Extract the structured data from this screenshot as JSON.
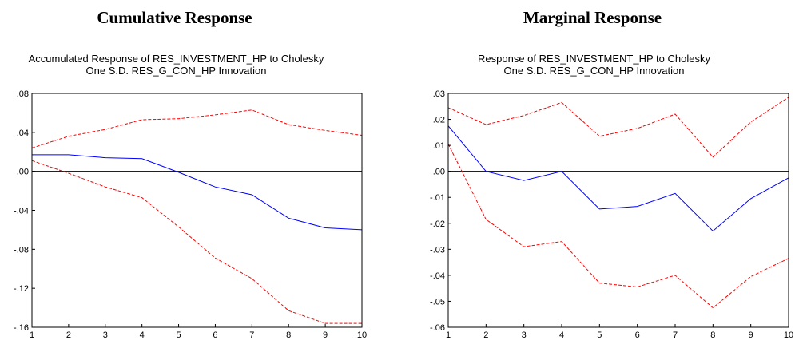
{
  "chart_data": [
    {
      "type": "line",
      "heading": "Cumulative Response",
      "title_lines": [
        "Accumulated Response of RES_INVESTMENT_HP to Cholesky",
        "One S.D. RES_G_CON_HP Innovation"
      ],
      "x": [
        1,
        2,
        3,
        4,
        5,
        6,
        7,
        8,
        9,
        10
      ],
      "x_tick_labels": [
        "1",
        "2",
        "3",
        "4",
        "5",
        "6",
        "7",
        "8",
        "9",
        "10"
      ],
      "ylim": [
        -0.16,
        0.08
      ],
      "y_ticks": [
        0.08,
        0.04,
        0.0,
        -0.04,
        -0.08,
        -0.12,
        -0.16
      ],
      "y_tick_labels": [
        ".08",
        ".04",
        ".00",
        "-.04",
        "-.08",
        "-.12",
        "-.16"
      ],
      "zero_line": true,
      "series": [
        {
          "role": "response",
          "color": "#0000ff",
          "dash": "solid",
          "values": [
            0.017,
            0.017,
            0.014,
            0.013,
            -0.001,
            -0.016,
            -0.024,
            -0.048,
            -0.058,
            -0.06
          ]
        },
        {
          "role": "upper-band",
          "color": "#ff0000",
          "dash": "dashed",
          "values": [
            0.024,
            0.036,
            0.043,
            0.053,
            0.054,
            0.058,
            0.063,
            0.048,
            0.042,
            0.037
          ]
        },
        {
          "role": "lower-band",
          "color": "#ff0000",
          "dash": "dashed",
          "values": [
            0.011,
            -0.002,
            -0.016,
            -0.027,
            -0.057,
            -0.089,
            -0.11,
            -0.143,
            -0.156,
            -0.156
          ]
        }
      ]
    },
    {
      "type": "line",
      "heading": "Marginal Response",
      "title_lines": [
        "Response of RES_INVESTMENT_HP to Cholesky",
        "One S.D. RES_G_CON_HP Innovation"
      ],
      "x": [
        1,
        2,
        3,
        4,
        5,
        6,
        7,
        8,
        9,
        10
      ],
      "x_tick_labels": [
        "1",
        "2",
        "3",
        "4",
        "5",
        "6",
        "7",
        "8",
        "9",
        "10"
      ],
      "ylim": [
        -0.06,
        0.03
      ],
      "y_ticks": [
        0.03,
        0.02,
        0.01,
        0.0,
        -0.01,
        -0.02,
        -0.03,
        -0.04,
        -0.05,
        -0.06
      ],
      "y_tick_labels": [
        ".03",
        ".02",
        ".01",
        ".00",
        "-.01",
        "-.02",
        "-.03",
        "-.04",
        "-.05",
        "-.06"
      ],
      "zero_line": true,
      "series": [
        {
          "role": "response",
          "color": "#0000ff",
          "dash": "solid",
          "values": [
            0.0175,
            0.0,
            -0.0035,
            0.0,
            -0.0145,
            -0.0135,
            -0.0085,
            -0.023,
            -0.0105,
            -0.0025
          ]
        },
        {
          "role": "upper-band",
          "color": "#ff0000",
          "dash": "dashed",
          "values": [
            0.0245,
            0.018,
            0.0215,
            0.0265,
            0.0135,
            0.0165,
            0.022,
            0.0055,
            0.019,
            0.0285
          ]
        },
        {
          "role": "lower-band",
          "color": "#ff0000",
          "dash": "dashed",
          "values": [
            0.0105,
            -0.0185,
            -0.029,
            -0.027,
            -0.043,
            -0.0445,
            -0.04,
            -0.0525,
            -0.0405,
            -0.0335
          ]
        }
      ]
    }
  ]
}
